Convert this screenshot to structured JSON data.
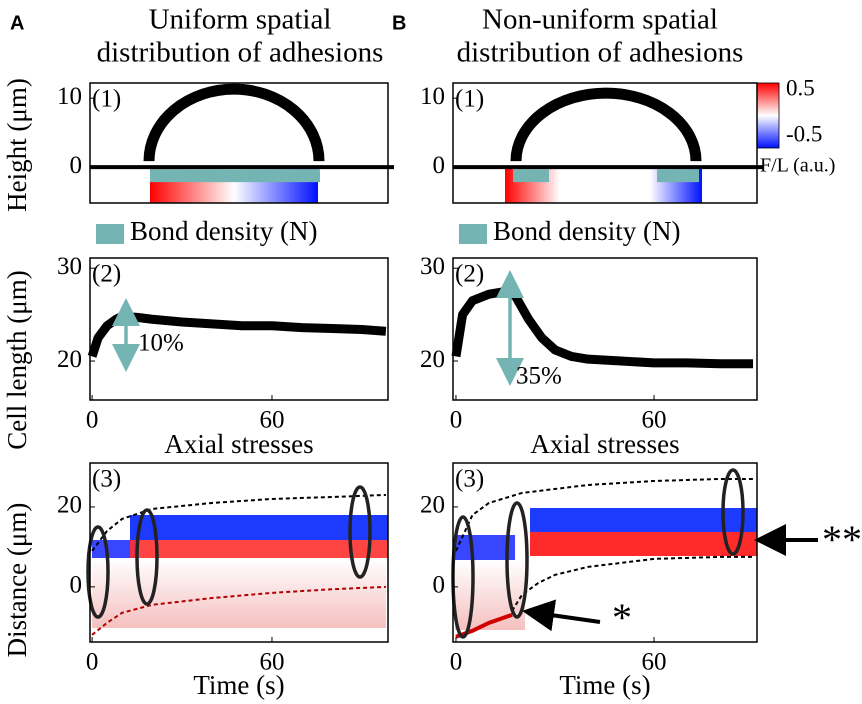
{
  "columns": [
    {
      "letter": "A",
      "title": [
        "Uniform spatial",
        "distribution of adhesions"
      ]
    },
    {
      "letter": "B",
      "title": [
        "Non-uniform spatial",
        "distribution of adhesions"
      ]
    }
  ],
  "chart_data": [
    {
      "type": "profile",
      "panel_label": "(1)",
      "ylabel": "Height (μm)",
      "ylim": [
        -5.2,
        12.2
      ],
      "yticks": [
        0,
        10
      ],
      "series": [
        {
          "name": "Bond density (N)",
          "color": "#74b4b2"
        }
      ]
    },
    {
      "type": "line",
      "panel_label": "(2)",
      "ylabel": "Cell length (μm)",
      "xlim": [
        -0.7,
        98.7
      ],
      "xticks": [
        0,
        60
      ],
      "ylim": [
        15.8,
        31.1
      ],
      "yticks": [
        20,
        30
      ],
      "x": [
        0,
        2,
        5,
        8,
        10,
        15,
        20,
        30,
        40,
        50,
        60,
        70,
        80,
        90,
        98
      ],
      "values": [
        20.5,
        22.5,
        23.8,
        24.5,
        24.8,
        24.7,
        24.5,
        24.2,
        24,
        23.8,
        23.8,
        23.6,
        23.5,
        23.4,
        23.2
      ],
      "color": "#000000",
      "annotations": [
        "10%"
      ]
    },
    {
      "type": "kymograph",
      "panel_label": "(3)",
      "title": "Axial stresses",
      "ylabel": "Distance (μm)",
      "xlabel": "Time (s)",
      "xlim": [
        -0.7,
        98.7
      ],
      "xticks": [
        0,
        60
      ],
      "ylim": [
        -13.8,
        31
      ],
      "yticks": [
        0,
        20
      ],
      "series": [
        {
          "x": [
            0,
            5,
            10,
            20,
            40,
            60,
            80,
            98
          ],
          "values": [
            9,
            14,
            17,
            19.5,
            21,
            22,
            22.5,
            23
          ],
          "color": "#000000",
          "dashed": true
        },
        {
          "x": [
            0,
            5,
            10,
            20,
            40,
            60,
            80,
            98
          ],
          "values": [
            -12,
            -9,
            -6.5,
            -4.5,
            -2.8,
            -1.5,
            -0.6,
            0
          ],
          "color": "#b00000",
          "dashed": true
        }
      ]
    },
    {
      "type": "profile",
      "panel_label": "(1)",
      "ylim": [
        -5.2,
        12.2
      ],
      "yticks": [
        0,
        10
      ],
      "series": [
        {
          "name": "Bond density (N)",
          "color": "#74b4b2"
        }
      ],
      "colorbar": {
        "ticks": [
          0.5,
          -0.5
        ],
        "label": "F/L (a.u.)"
      }
    },
    {
      "type": "line",
      "panel_label": "(2)",
      "xlim": [
        -0.9,
        91.2
      ],
      "xticks": [
        0,
        60
      ],
      "ylim": [
        15.8,
        31.1
      ],
      "yticks": [
        20,
        30
      ],
      "x": [
        0,
        2,
        5,
        10,
        15,
        18,
        22,
        26,
        30,
        35,
        40,
        50,
        60,
        70,
        80,
        90
      ],
      "values": [
        20.5,
        25,
        26.5,
        27.2,
        27.5,
        27,
        24.5,
        22.5,
        21.2,
        20.5,
        20.2,
        20,
        19.8,
        19.8,
        19.7,
        19.7
      ],
      "color": "#000000",
      "annotations": [
        "35%"
      ]
    },
    {
      "type": "kymograph",
      "panel_label": "(3)",
      "title": "Axial stresses",
      "xlabel": "Time (s)",
      "xlim": [
        -0.9,
        91.2
      ],
      "xticks": [
        0,
        60
      ],
      "ylim": [
        -13.8,
        31
      ],
      "yticks": [
        0,
        20
      ],
      "series": [
        {
          "x": [
            0,
            5,
            10,
            20,
            40,
            60,
            80,
            90
          ],
          "values": [
            9,
            18,
            21,
            23.5,
            25.5,
            26.5,
            27,
            27
          ],
          "color": "#000000",
          "dashed": true
        },
        {
          "x": [
            17,
            20,
            25,
            30,
            40,
            60,
            80,
            90
          ],
          "values": [
            -6,
            -2,
            1,
            3,
            5,
            7,
            7.5,
            7.5
          ],
          "color": "#000000",
          "dashed": true
        },
        {
          "x": [
            0,
            5,
            10,
            17
          ],
          "values": [
            -12.5,
            -11,
            -9,
            -7
          ],
          "color": "#d00000",
          "dashed": false
        }
      ],
      "annotations": [
        "*",
        "**"
      ]
    }
  ]
}
